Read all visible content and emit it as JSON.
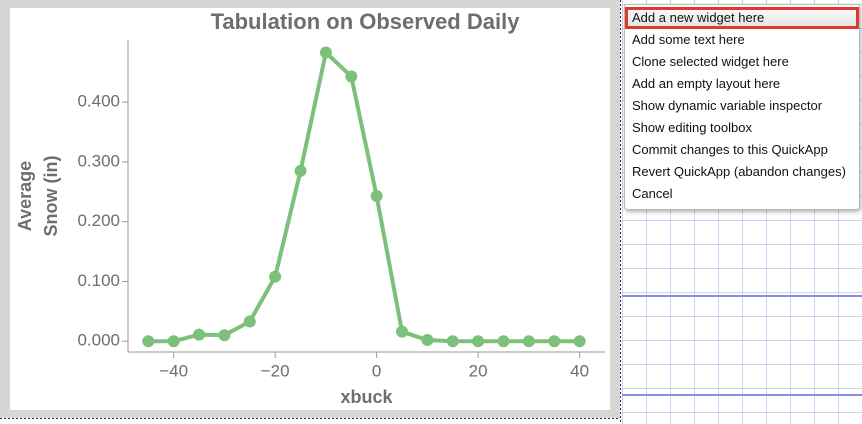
{
  "chart_data": {
    "type": "line",
    "title": "Tabulation on Observed Daily",
    "xlabel": "xbuck",
    "ylabel_lines": [
      "Average",
      "Snow (in)"
    ],
    "x": [
      -45,
      -40,
      -35,
      -30,
      -25,
      -20,
      -15,
      -10,
      -5,
      0,
      5,
      10,
      15,
      20,
      25,
      30,
      35,
      40
    ],
    "series": [
      {
        "color": "#7dc07a",
        "values": [
          0.0,
          0.0,
          0.011,
          0.01,
          0.033,
          0.108,
          0.285,
          0.483,
          0.443,
          0.243,
          0.016,
          0.002,
          0.0,
          0.0,
          0.0,
          0.0,
          0.0,
          0.0
        ]
      }
    ],
    "xlim": [
      -49,
      45
    ],
    "xticks": [
      {
        "value": -40,
        "label": "−40"
      },
      {
        "value": -20,
        "label": "−20"
      },
      0,
      20,
      40
    ],
    "ylim": [
      -0.018,
      0.504
    ],
    "yticks": [
      {
        "value": 0,
        "label": "0.000"
      },
      {
        "value": 0.1,
        "label": "0.100"
      },
      {
        "value": 0.2,
        "label": "0.200"
      },
      {
        "value": 0.3,
        "label": "0.300"
      },
      {
        "value": 0.4,
        "label": "0.400"
      }
    ],
    "grid": false
  },
  "menu": {
    "items": [
      "Add a new widget here",
      "Add some text here",
      "Clone selected widget here",
      "Add an empty layout here",
      "Show dynamic variable inspector",
      "Show editing toolbox",
      "Commit changes to this QuickApp",
      "Revert QuickApp (abandon changes)",
      "Cancel"
    ],
    "highlighted": 0
  }
}
